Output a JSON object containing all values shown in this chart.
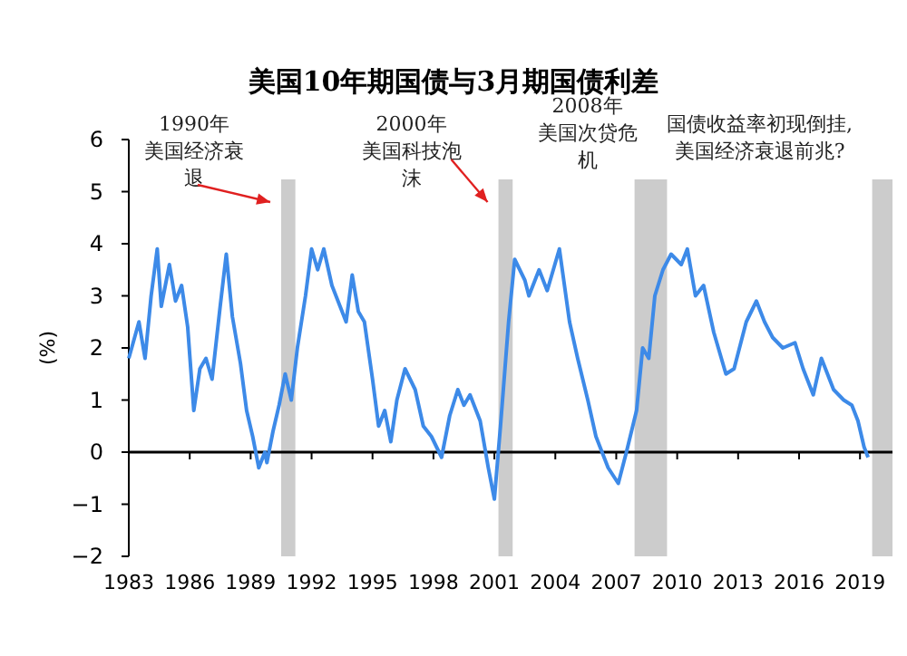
{
  "chart_data": {
    "type": "line",
    "title": "美国10年期国债与3月期国债利差",
    "ylabel": "(%)",
    "xlim": [
      1983,
      2020.6
    ],
    "xticks": [
      1983,
      1986,
      1989,
      1992,
      1995,
      1998,
      2001,
      2004,
      2007,
      2010,
      2013,
      2016,
      2019
    ],
    "ylim": [
      -2,
      6
    ],
    "yticks": [
      -2,
      -1,
      0,
      1,
      2,
      3,
      4,
      5,
      6
    ],
    "x": [
      1983.0,
      1983.5,
      1983.8,
      1984.1,
      1984.4,
      1984.6,
      1985.0,
      1985.3,
      1985.6,
      1985.9,
      1986.2,
      1986.5,
      1986.8,
      1987.1,
      1987.5,
      1987.8,
      1988.1,
      1988.5,
      1988.8,
      1989.1,
      1989.4,
      1989.7,
      1989.8,
      1990.1,
      1990.4,
      1990.7,
      1991.0,
      1991.3,
      1991.7,
      1992.0,
      1992.3,
      1992.6,
      1993.0,
      1993.4,
      1993.7,
      1994.0,
      1994.3,
      1994.6,
      1995.0,
      1995.3,
      1995.6,
      1995.9,
      1996.2,
      1996.6,
      1997.1,
      1997.5,
      1997.9,
      1998.4,
      1998.8,
      1999.2,
      1999.5,
      1999.8,
      2000.3,
      2000.7,
      2001.0,
      2001.3,
      2001.7,
      2002.0,
      2002.5,
      2002.7,
      2003.2,
      2003.6,
      2004.2,
      2004.7,
      2005.1,
      2005.6,
      2006.0,
      2006.6,
      2007.1,
      2007.5,
      2008.0,
      2008.3,
      2008.6,
      2008.9,
      2009.3,
      2009.7,
      2010.2,
      2010.5,
      2010.9,
      2011.3,
      2011.8,
      2012.4,
      2012.8,
      2013.4,
      2013.9,
      2014.3,
      2014.7,
      2015.2,
      2015.8,
      2016.2,
      2016.7,
      2017.1,
      2017.7,
      2018.2,
      2018.6,
      2018.9,
      2019.2,
      2019.4
    ],
    "series": [
      {
        "color": "#3d8ae8",
        "values": [
          1.8,
          2.5,
          1.8,
          3.0,
          3.9,
          2.8,
          3.6,
          2.9,
          3.2,
          2.4,
          0.8,
          1.6,
          1.8,
          1.4,
          2.8,
          3.8,
          2.6,
          1.7,
          0.8,
          0.3,
          -0.3,
          0.0,
          -0.2,
          0.4,
          0.9,
          1.5,
          1.0,
          2.0,
          3.0,
          3.9,
          3.5,
          3.9,
          3.2,
          2.8,
          2.5,
          3.4,
          2.7,
          2.5,
          1.4,
          0.5,
          0.8,
          0.2,
          1.0,
          1.6,
          1.2,
          0.5,
          0.3,
          -0.1,
          0.7,
          1.2,
          0.9,
          1.1,
          0.6,
          -0.3,
          -0.9,
          0.5,
          2.5,
          3.7,
          3.3,
          3.0,
          3.5,
          3.1,
          3.9,
          2.5,
          1.8,
          1.0,
          0.3,
          -0.3,
          -0.6,
          0.0,
          0.8,
          2.0,
          1.8,
          3.0,
          3.5,
          3.8,
          3.6,
          3.9,
          3.0,
          3.2,
          2.3,
          1.5,
          1.6,
          2.5,
          2.9,
          2.5,
          2.2,
          2.0,
          2.1,
          1.6,
          1.1,
          1.8,
          1.2,
          1.0,
          0.9,
          0.6,
          0.1,
          -0.1
        ]
      }
    ],
    "bands": [
      {
        "axis": "x",
        "from": 1990.5,
        "to": 1991.2,
        "color": "#cccccc"
      },
      {
        "axis": "x",
        "from": 2001.2,
        "to": 2001.9,
        "color": "#cccccc"
      },
      {
        "axis": "x",
        "from": 2007.9,
        "to": 2009.5,
        "color": "#cccccc"
      },
      {
        "axis": "x",
        "from": 2019.6,
        "to": 2020.6,
        "color": "#cccccc"
      }
    ],
    "annotations": [
      "1990年美国经济衰退",
      "2000年美国科技泡沫",
      "2008年美国次贷危机",
      "国债收益率初现倒挂,美国经济衰退前兆?"
    ]
  }
}
